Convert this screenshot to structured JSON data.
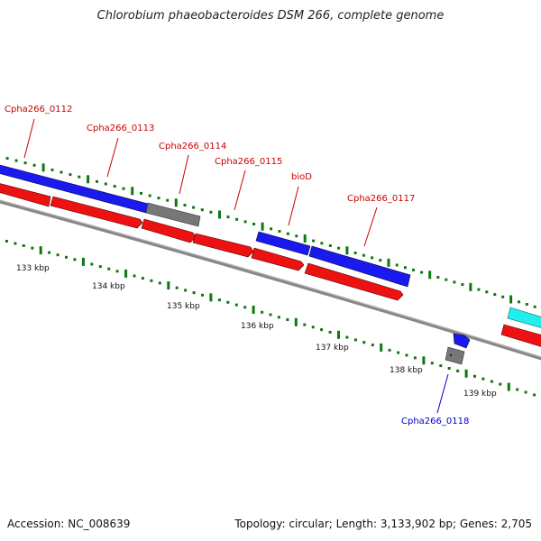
{
  "title": "Chlorobium phaeobacteroides DSM 266, complete genome",
  "footer": {
    "accession": "Accession: NC_008639",
    "topology": "Topology: circular; Length: 3,133,902 bp; Genes: 2,705"
  },
  "colors": {
    "forward_cds": "#1a1aee",
    "reverse_cds": "#ee1111",
    "gene_gray": "#777777",
    "rna": "#22eeee",
    "backbone": "#888888",
    "tick_green": "#117711",
    "label_forward": "#cc0000",
    "label_reverse": "#0000cc"
  },
  "scale_labels": [
    "133 kbp",
    "134 kbp",
    "135 kbp",
    "136 kbp",
    "137 kbp",
    "138 kbp",
    "139 kbp"
  ],
  "gene_labels": [
    {
      "text": "Cpha266_0112",
      "strand": "forward"
    },
    {
      "text": "Cpha266_0113",
      "strand": "forward"
    },
    {
      "text": "Cpha266_0114",
      "strand": "forward"
    },
    {
      "text": "Cpha266_0115",
      "strand": "forward"
    },
    {
      "text": "bioD",
      "strand": "forward"
    },
    {
      "text": "Cpha266_0117",
      "strand": "forward"
    },
    {
      "text": "Cpha266_0118",
      "strand": "reverse"
    }
  ]
}
